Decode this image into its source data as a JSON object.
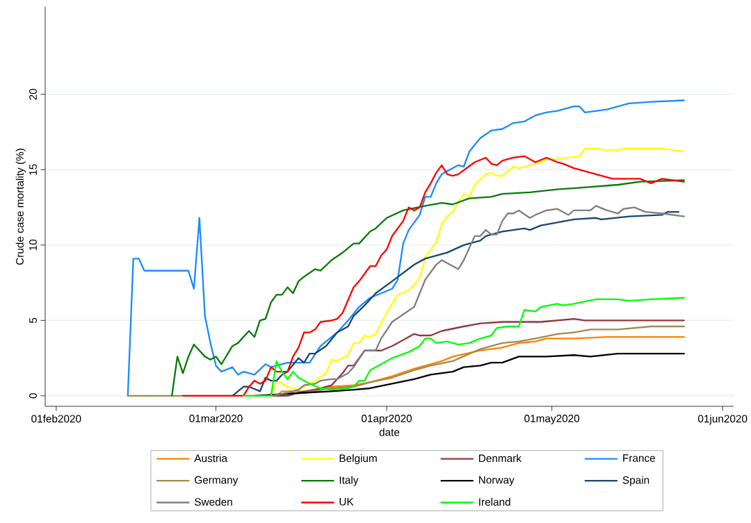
{
  "chart_data": {
    "type": "line",
    "xlabel": "date",
    "ylabel": "Crude case mortality (%)",
    "xlim": [
      "2020-01-30",
      "2020-06-03"
    ],
    "ylim": [
      -0.7,
      25.8
    ],
    "xticks": [
      {
        "value": "2020-02-01",
        "label": "01feb2020"
      },
      {
        "value": "2020-03-01",
        "label": "01mar2020"
      },
      {
        "value": "2020-04-01",
        "label": "01apr2020"
      },
      {
        "value": "2020-05-01",
        "label": "01may2020"
      },
      {
        "value": "2020-06-01",
        "label": "01jun2020"
      }
    ],
    "yticks": [
      0,
      5,
      10,
      15,
      20
    ],
    "grid": "y",
    "legend": "bottom",
    "marker": "none",
    "line_style": "solid",
    "series": [
      {
        "name": "Austria",
        "color": "#ff8000",
        "x": [
          "2020-03-12",
          "2020-03-13",
          "2020-03-17",
          "2020-03-22",
          "2020-03-26",
          "2020-03-29",
          "2020-04-02",
          "2020-04-06",
          "2020-04-09",
          "2020-04-11",
          "2020-04-13",
          "2020-04-18",
          "2020-04-22",
          "2020-04-25",
          "2020-04-28",
          "2020-04-30",
          "2020-05-05",
          "2020-05-11",
          "2020-05-25"
        ],
        "values": [
          0,
          0.3,
          0.3,
          0.6,
          0.7,
          0.9,
          1.3,
          1.8,
          2.1,
          2.3,
          2.6,
          3.0,
          3.2,
          3.5,
          3.6,
          3.8,
          3.8,
          3.9,
          3.9
        ]
      },
      {
        "name": "Belgium",
        "color": "#ffff00",
        "x": [
          "2020-03-11",
          "2020-03-12",
          "2020-03-14",
          "2020-03-16",
          "2020-03-19",
          "2020-03-21",
          "2020-03-22",
          "2020-03-23",
          "2020-03-25",
          "2020-03-26",
          "2020-03-27",
          "2020-03-28",
          "2020-03-29",
          "2020-03-30",
          "2020-04-01",
          "2020-04-03",
          "2020-04-05",
          "2020-04-07",
          "2020-04-08",
          "2020-04-09",
          "2020-04-10",
          "2020-04-11",
          "2020-04-12",
          "2020-04-13",
          "2020-04-15",
          "2020-04-16",
          "2020-04-17",
          "2020-04-19",
          "2020-04-20",
          "2020-04-21",
          "2020-04-22",
          "2020-04-24",
          "2020-04-25",
          "2020-04-27",
          "2020-04-29",
          "2020-04-30",
          "2020-05-02",
          "2020-05-04",
          "2020-05-06",
          "2020-05-07",
          "2020-05-09",
          "2020-05-11",
          "2020-05-13",
          "2020-05-14",
          "2020-05-21",
          "2020-05-25"
        ],
        "values": [
          0,
          1.0,
          0.6,
          0.4,
          1.0,
          1.5,
          2.4,
          2.3,
          2.7,
          3.5,
          3.5,
          4.0,
          3.9,
          4.1,
          5.5,
          6.7,
          7.0,
          7.8,
          9.2,
          9.7,
          10.2,
          11.4,
          11.9,
          12.2,
          13.4,
          13.2,
          14.0,
          14.7,
          14.8,
          14.6,
          14.6,
          15.2,
          15.1,
          15.3,
          15.5,
          15.7,
          15.7,
          15.8,
          15.9,
          16.4,
          16.4,
          16.3,
          16.3,
          16.4,
          16.4,
          16.2
        ]
      },
      {
        "name": "Denmark",
        "color": "#903840",
        "x": [
          "2020-03-09",
          "2020-03-14",
          "2020-03-16",
          "2020-03-19",
          "2020-03-22",
          "2020-03-24",
          "2020-03-25",
          "2020-03-26",
          "2020-03-28",
          "2020-03-31",
          "2020-04-02",
          "2020-04-04",
          "2020-04-06",
          "2020-04-07",
          "2020-04-09",
          "2020-04-11",
          "2020-04-15",
          "2020-04-18",
          "2020-04-22",
          "2020-04-29",
          "2020-05-05",
          "2020-05-07",
          "2020-05-25"
        ],
        "values": [
          0,
          0,
          0.2,
          0.4,
          0.7,
          1.5,
          2.0,
          2.0,
          3.0,
          3.0,
          3.3,
          3.7,
          4.1,
          4.0,
          4.0,
          4.3,
          4.6,
          4.8,
          4.9,
          4.9,
          5.1,
          5.0,
          5.0
        ]
      },
      {
        "name": "France",
        "color": "#1a8cff",
        "x": [
          "2020-02-14",
          "2020-02-15",
          "2020-02-16",
          "2020-02-17",
          "2020-02-25",
          "2020-02-26",
          "2020-02-27",
          "2020-02-28",
          "2020-02-29",
          "2020-03-01",
          "2020-03-02",
          "2020-03-04",
          "2020-03-05",
          "2020-03-06",
          "2020-03-08",
          "2020-03-10",
          "2020-03-11",
          "2020-03-14",
          "2020-03-16",
          "2020-03-18",
          "2020-03-20",
          "2020-03-23",
          "2020-03-25",
          "2020-03-27",
          "2020-03-29",
          "2020-03-31",
          "2020-04-02",
          "2020-04-03",
          "2020-04-04",
          "2020-04-05",
          "2020-04-07",
          "2020-04-08",
          "2020-04-09",
          "2020-04-10",
          "2020-04-11",
          "2020-04-14",
          "2020-04-15",
          "2020-04-16",
          "2020-04-18",
          "2020-04-20",
          "2020-04-22",
          "2020-04-24",
          "2020-04-26",
          "2020-04-28",
          "2020-04-30",
          "2020-05-02",
          "2020-05-05",
          "2020-05-06",
          "2020-05-07",
          "2020-05-11",
          "2020-05-13",
          "2020-05-15",
          "2020-05-19",
          "2020-05-25"
        ],
        "values": [
          0,
          9.1,
          9.1,
          8.3,
          8.3,
          7.1,
          11.8,
          5.3,
          3.5,
          2.0,
          1.6,
          1.9,
          1.4,
          1.6,
          1.4,
          2.1,
          1.9,
          2.2,
          2.2,
          2.2,
          3.3,
          4.2,
          5.0,
          5.9,
          6.5,
          6.8,
          7.1,
          7.7,
          10.1,
          11.0,
          12.0,
          13.2,
          13.2,
          14.1,
          14.7,
          15.3,
          15.2,
          16.2,
          17.1,
          17.6,
          17.7,
          18.1,
          18.2,
          18.6,
          18.8,
          18.9,
          19.2,
          19.2,
          18.8,
          19.0,
          19.2,
          19.4,
          19.5,
          19.6
        ]
      },
      {
        "name": "Germany",
        "color": "#a08a4e",
        "x": [
          "2020-02-14",
          "2020-03-09",
          "2020-03-17",
          "2020-03-22",
          "2020-03-26",
          "2020-03-29",
          "2020-04-02",
          "2020-04-06",
          "2020-04-09",
          "2020-04-13",
          "2020-04-18",
          "2020-04-22",
          "2020-04-25",
          "2020-04-28",
          "2020-05-02",
          "2020-05-05",
          "2020-05-08",
          "2020-05-13",
          "2020-05-19",
          "2020-05-25"
        ],
        "values": [
          0,
          0,
          0.2,
          0.5,
          0.6,
          0.9,
          1.2,
          1.7,
          2.0,
          2.3,
          3.1,
          3.5,
          3.6,
          3.8,
          4.1,
          4.2,
          4.4,
          4.4,
          4.6,
          4.6
        ]
      },
      {
        "name": "Italy",
        "color": "#0a7a0a",
        "x": [
          "2020-02-22",
          "2020-02-23",
          "2020-02-24",
          "2020-02-25",
          "2020-02-26",
          "2020-02-28",
          "2020-02-29",
          "2020-03-01",
          "2020-03-02",
          "2020-03-04",
          "2020-03-05",
          "2020-03-07",
          "2020-03-08",
          "2020-03-09",
          "2020-03-10",
          "2020-03-11",
          "2020-03-12",
          "2020-03-13",
          "2020-03-14",
          "2020-03-15",
          "2020-03-16",
          "2020-03-17",
          "2020-03-19",
          "2020-03-20",
          "2020-03-22",
          "2020-03-24",
          "2020-03-26",
          "2020-03-27",
          "2020-03-29",
          "2020-03-30",
          "2020-04-01",
          "2020-04-04",
          "2020-04-08",
          "2020-04-11",
          "2020-04-13",
          "2020-04-16",
          "2020-04-20",
          "2020-04-22",
          "2020-04-27",
          "2020-05-02",
          "2020-05-06",
          "2020-05-13",
          "2020-05-17",
          "2020-05-25"
        ],
        "values": [
          0,
          2.6,
          1.5,
          2.6,
          3.4,
          2.6,
          2.4,
          2.6,
          2.1,
          3.3,
          3.5,
          4.3,
          3.9,
          5.0,
          5.1,
          6.2,
          6.7,
          6.7,
          7.2,
          6.8,
          7.6,
          7.9,
          8.4,
          8.3,
          9.0,
          9.5,
          10.1,
          10.1,
          10.9,
          11.1,
          11.8,
          12.3,
          12.6,
          12.8,
          12.7,
          13.1,
          13.2,
          13.4,
          13.5,
          13.7,
          13.8,
          14.0,
          14.2,
          14.3
        ]
      },
      {
        "name": "Norway",
        "color": "#000000",
        "x": [
          "2020-03-08",
          "2020-03-17",
          "2020-03-22",
          "2020-03-26",
          "2020-03-29",
          "2020-04-02",
          "2020-04-06",
          "2020-04-09",
          "2020-04-13",
          "2020-04-15",
          "2020-04-18",
          "2020-04-20",
          "2020-04-22",
          "2020-04-25",
          "2020-04-30",
          "2020-05-05",
          "2020-05-08",
          "2020-05-13",
          "2020-05-25"
        ],
        "values": [
          0,
          0.2,
          0.3,
          0.4,
          0.5,
          0.8,
          1.1,
          1.4,
          1.6,
          1.9,
          2.0,
          2.2,
          2.2,
          2.6,
          2.6,
          2.7,
          2.6,
          2.8,
          2.8
        ]
      },
      {
        "name": "Spain",
        "color": "#1a476f",
        "x": [
          "2020-03-04",
          "2020-03-06",
          "2020-03-07",
          "2020-03-09",
          "2020-03-10",
          "2020-03-11",
          "2020-03-12",
          "2020-03-13",
          "2020-03-14",
          "2020-03-16",
          "2020-03-17",
          "2020-03-18",
          "2020-03-19",
          "2020-03-21",
          "2020-03-23",
          "2020-03-25",
          "2020-03-26",
          "2020-03-28",
          "2020-03-30",
          "2020-04-02",
          "2020-04-06",
          "2020-04-08",
          "2020-04-12",
          "2020-04-15",
          "2020-04-18",
          "2020-04-19",
          "2020-04-22",
          "2020-04-26",
          "2020-04-27",
          "2020-04-29",
          "2020-05-05",
          "2020-05-09",
          "2020-05-10",
          "2020-05-15",
          "2020-05-21",
          "2020-05-22",
          "2020-05-24"
        ],
        "values": [
          0,
          0.6,
          0.6,
          0.3,
          1.2,
          1.0,
          1.0,
          1.4,
          1.6,
          2.5,
          2.2,
          2.8,
          2.8,
          3.3,
          4.2,
          4.6,
          5.3,
          6.0,
          6.8,
          7.6,
          8.7,
          9.1,
          9.5,
          10.0,
          10.3,
          10.6,
          10.9,
          11.1,
          11.0,
          11.3,
          11.7,
          11.8,
          11.7,
          11.9,
          12.0,
          12.2,
          12.2
        ]
      },
      {
        "name": "Sweden",
        "color": "#808080",
        "x": [
          "2020-03-11",
          "2020-03-14",
          "2020-03-16",
          "2020-03-17",
          "2020-03-19",
          "2020-03-20",
          "2020-03-22",
          "2020-03-23",
          "2020-03-25",
          "2020-03-26",
          "2020-03-28",
          "2020-03-30",
          "2020-03-31",
          "2020-04-02",
          "2020-04-04",
          "2020-04-06",
          "2020-04-08",
          "2020-04-10",
          "2020-04-11",
          "2020-04-12",
          "2020-04-14",
          "2020-04-15",
          "2020-04-17",
          "2020-04-18",
          "2020-04-19",
          "2020-04-20",
          "2020-04-21",
          "2020-04-22",
          "2020-04-23",
          "2020-04-24",
          "2020-04-25",
          "2020-04-27",
          "2020-04-28",
          "2020-04-30",
          "2020-05-02",
          "2020-05-04",
          "2020-05-05",
          "2020-05-08",
          "2020-05-09",
          "2020-05-11",
          "2020-05-13",
          "2020-05-14",
          "2020-05-16",
          "2020-05-18",
          "2020-05-21",
          "2020-05-23",
          "2020-05-25"
        ],
        "values": [
          0,
          0.2,
          0.4,
          0.7,
          0.8,
          1.0,
          1.1,
          1.1,
          1.5,
          1.9,
          3.0,
          3.0,
          3.8,
          4.9,
          5.4,
          5.9,
          7.7,
          8.7,
          9.0,
          8.8,
          8.4,
          9.0,
          10.6,
          10.6,
          11.0,
          10.7,
          10.7,
          11.6,
          12.1,
          12.1,
          12.3,
          11.8,
          12.0,
          12.3,
          12.4,
          12.0,
          12.3,
          12.3,
          12.6,
          12.3,
          12.1,
          12.4,
          12.5,
          12.2,
          12.1,
          12.0,
          11.9
        ]
      },
      {
        "name": "UK",
        "color": "#ff0000",
        "x": [
          "2020-02-24",
          "2020-03-06",
          "2020-03-07",
          "2020-03-08",
          "2020-03-09",
          "2020-03-10",
          "2020-03-11",
          "2020-03-12",
          "2020-03-14",
          "2020-03-15",
          "2020-03-16",
          "2020-03-17",
          "2020-03-18",
          "2020-03-19",
          "2020-03-20",
          "2020-03-22",
          "2020-03-23",
          "2020-03-24",
          "2020-03-26",
          "2020-03-27",
          "2020-03-29",
          "2020-03-30",
          "2020-03-31",
          "2020-04-01",
          "2020-04-02",
          "2020-04-04",
          "2020-04-05",
          "2020-04-06",
          "2020-04-07",
          "2020-04-08",
          "2020-04-09",
          "2020-04-10",
          "2020-04-11",
          "2020-04-12",
          "2020-04-13",
          "2020-04-14",
          "2020-04-17",
          "2020-04-19",
          "2020-04-20",
          "2020-04-21",
          "2020-04-22",
          "2020-04-24",
          "2020-04-26",
          "2020-04-28",
          "2020-04-30",
          "2020-05-02",
          "2020-05-03",
          "2020-05-05",
          "2020-05-08",
          "2020-05-09",
          "2020-05-12",
          "2020-05-17",
          "2020-05-19",
          "2020-05-21",
          "2020-05-25"
        ],
        "values": [
          0,
          0,
          0.6,
          1.0,
          0.8,
          1.0,
          1.9,
          1.6,
          1.6,
          2.6,
          3.2,
          4.2,
          4.2,
          4.4,
          4.9,
          5.0,
          5.1,
          5.5,
          7.2,
          7.6,
          8.6,
          8.6,
          9.3,
          9.7,
          10.6,
          11.6,
          12.5,
          12.3,
          12.5,
          13.5,
          14.1,
          14.8,
          15.3,
          14.7,
          14.6,
          14.7,
          15.5,
          15.8,
          15.4,
          15.3,
          15.6,
          15.8,
          15.9,
          15.5,
          15.8,
          15.5,
          15.4,
          15.1,
          14.8,
          14.7,
          14.4,
          14.4,
          14.1,
          14.4,
          14.2
        ]
      },
      {
        "name": "Ireland",
        "color": "#00ff00",
        "x": [
          "2020-03-06",
          "2020-03-11",
          "2020-03-12",
          "2020-03-13",
          "2020-03-14",
          "2020-03-15",
          "2020-03-16",
          "2020-03-18",
          "2020-03-20",
          "2020-03-22",
          "2020-03-25",
          "2020-03-26",
          "2020-03-27",
          "2020-03-28",
          "2020-03-29",
          "2020-03-30",
          "2020-04-02",
          "2020-04-05",
          "2020-04-07",
          "2020-04-08",
          "2020-04-09",
          "2020-04-10",
          "2020-04-12",
          "2020-04-14",
          "2020-04-16",
          "2020-04-18",
          "2020-04-20",
          "2020-04-21",
          "2020-04-23",
          "2020-04-25",
          "2020-04-26",
          "2020-04-28",
          "2020-04-29",
          "2020-05-02",
          "2020-05-03",
          "2020-05-05",
          "2020-05-09",
          "2020-05-13",
          "2020-05-15",
          "2020-05-19",
          "2020-05-25"
        ],
        "values": [
          0,
          0,
          2.3,
          1.6,
          1.1,
          1.6,
          1.2,
          0.8,
          0.5,
          0.4,
          0.5,
          0.6,
          1.0,
          1.0,
          1.7,
          1.9,
          2.5,
          2.9,
          3.3,
          3.8,
          3.8,
          3.5,
          3.6,
          3.4,
          3.5,
          3.8,
          4.0,
          4.5,
          4.6,
          4.6,
          5.7,
          5.6,
          5.9,
          6.1,
          6.0,
          6.1,
          6.4,
          6.4,
          6.3,
          6.4,
          6.5
        ]
      }
    ]
  }
}
